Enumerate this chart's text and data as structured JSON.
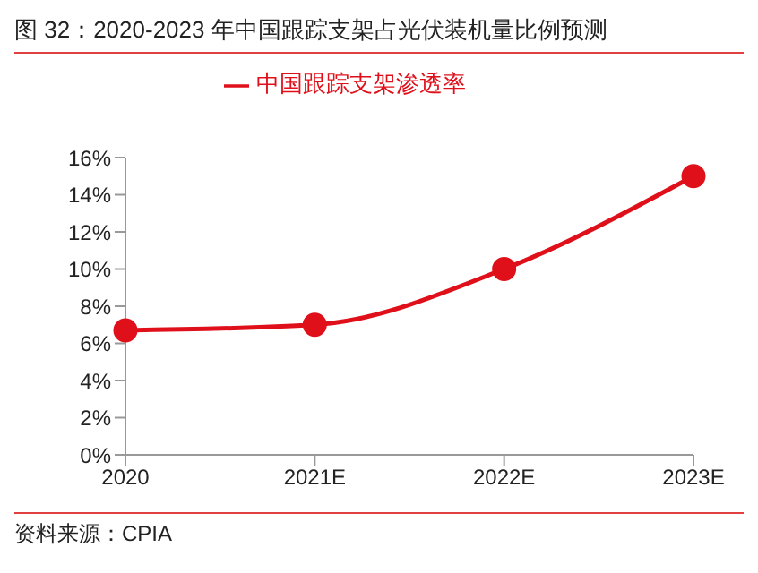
{
  "chart_data": {
    "type": "line",
    "title": "图 32：2020-2023 年中国跟踪支架占光伏装机量比例预测",
    "categories": [
      "2020",
      "2021E",
      "2022E",
      "2023E"
    ],
    "series": [
      {
        "name": "中国跟踪支架渗透率",
        "color": "#e0101a",
        "values": [
          6.7,
          7,
          10,
          15
        ]
      }
    ],
    "ylim": [
      0,
      16
    ],
    "yticks": [
      {
        "value": 0,
        "label": "0%"
      },
      {
        "value": 2,
        "label": "2%"
      },
      {
        "value": 4,
        "label": "4%"
      },
      {
        "value": 6,
        "label": "6%"
      },
      {
        "value": 8,
        "label": "8%"
      },
      {
        "value": 10,
        "label": "10%"
      },
      {
        "value": 12,
        "label": "12%"
      },
      {
        "value": 14,
        "label": "14%"
      },
      {
        "value": 16,
        "label": "16%"
      }
    ],
    "grid": false,
    "legend": "top",
    "marker": "circle",
    "line_style": "solid",
    "annotations": [
      "资料来源：CPIA"
    ]
  }
}
